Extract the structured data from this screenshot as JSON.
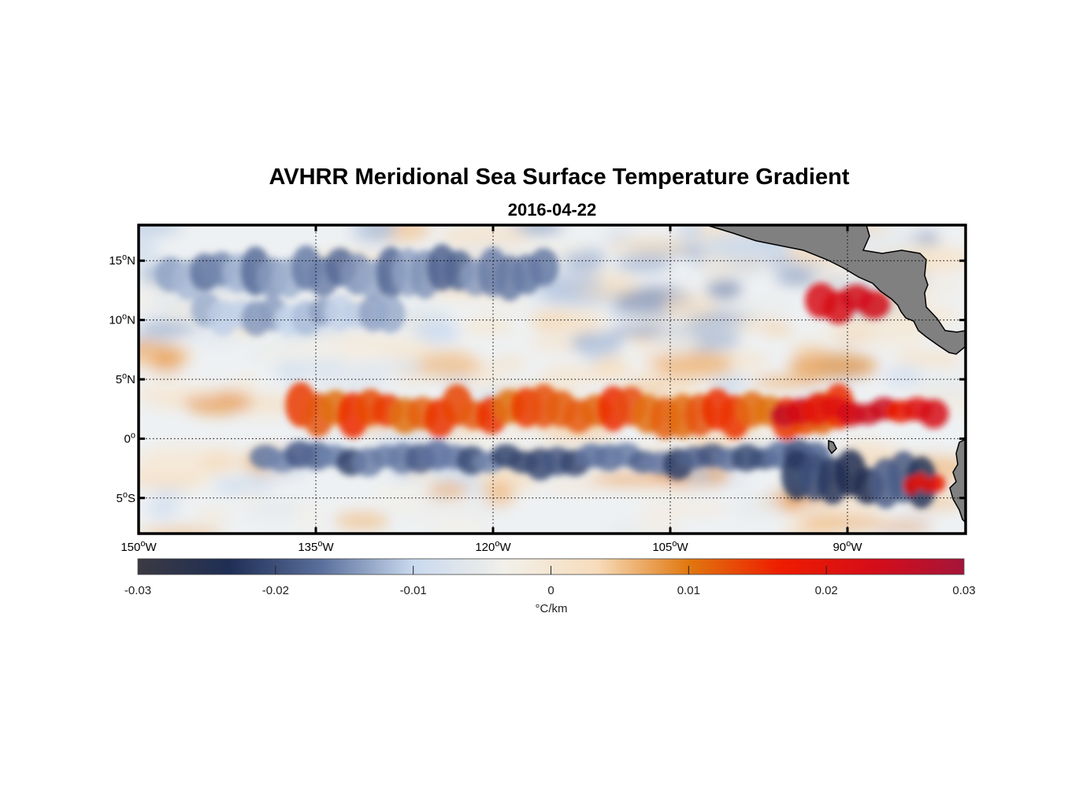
{
  "title": "AVHRR Meridional Sea Surface Temperature Gradient",
  "subtitle": "2016-04-22",
  "map": {
    "lon_range": [
      -150,
      -80
    ],
    "lat_range": [
      -8,
      18
    ],
    "lon_ticks": [
      {
        "label": "150",
        "value": -150
      },
      {
        "label": "135",
        "value": -135
      },
      {
        "label": "120",
        "value": -120
      },
      {
        "label": "105",
        "value": -105
      },
      {
        "label": "90",
        "value": -90
      }
    ],
    "lon_suffix": "W",
    "lat_ticks": [
      {
        "label": "15",
        "suffix": "N",
        "value": 15
      },
      {
        "label": "10",
        "suffix": "N",
        "value": 10
      },
      {
        "label": "5",
        "suffix": "N",
        "value": 5
      },
      {
        "label": "0",
        "suffix": "",
        "value": 0
      },
      {
        "label": "5",
        "suffix": "S",
        "value": -5
      }
    ],
    "degree_symbol": "o",
    "grid": "dotted",
    "land_color": "#808080",
    "bands": [
      {
        "lon": [
          -137,
          -90
        ],
        "lat": [
          0.5,
          4
        ],
        "value": 0.013
      },
      {
        "lon": [
          -96,
          -82
        ],
        "lat": [
          1,
          3.5
        ],
        "value": 0.022
      },
      {
        "lon": [
          -140,
          -92
        ],
        "lat": [
          -3,
          -0.5
        ],
        "value": -0.018
      },
      {
        "lon": [
          -95,
          -83
        ],
        "lat": [
          -5.5,
          -1.5
        ],
        "value": -0.02
      },
      {
        "lon": [
          -148,
          -115
        ],
        "lat": [
          12,
          16
        ],
        "value": -0.015
      },
      {
        "lon": [
          -145,
          -128
        ],
        "lat": [
          9,
          12
        ],
        "value": -0.012
      },
      {
        "lon": [
          -93,
          -87
        ],
        "lat": [
          10,
          13
        ],
        "value": 0.02
      },
      {
        "lon": [
          -85,
          -82
        ],
        "lat": [
          -4.5,
          -3
        ],
        "value": 0.018
      }
    ]
  },
  "colorbar": {
    "min": -0.03,
    "max": 0.03,
    "ticks": [
      "-0.03",
      "-0.02",
      "-0.01",
      "0",
      "0.01",
      "0.02",
      "0.03"
    ],
    "label": "°C/km",
    "colors": [
      "#3a3a42",
      "#1f2e55",
      "#5a6f9c",
      "#c9d9ee",
      "#f2f0ea",
      "#f7dcbb",
      "#e0780f",
      "#ee1c00",
      "#d50d18",
      "#a5153a"
    ]
  }
}
